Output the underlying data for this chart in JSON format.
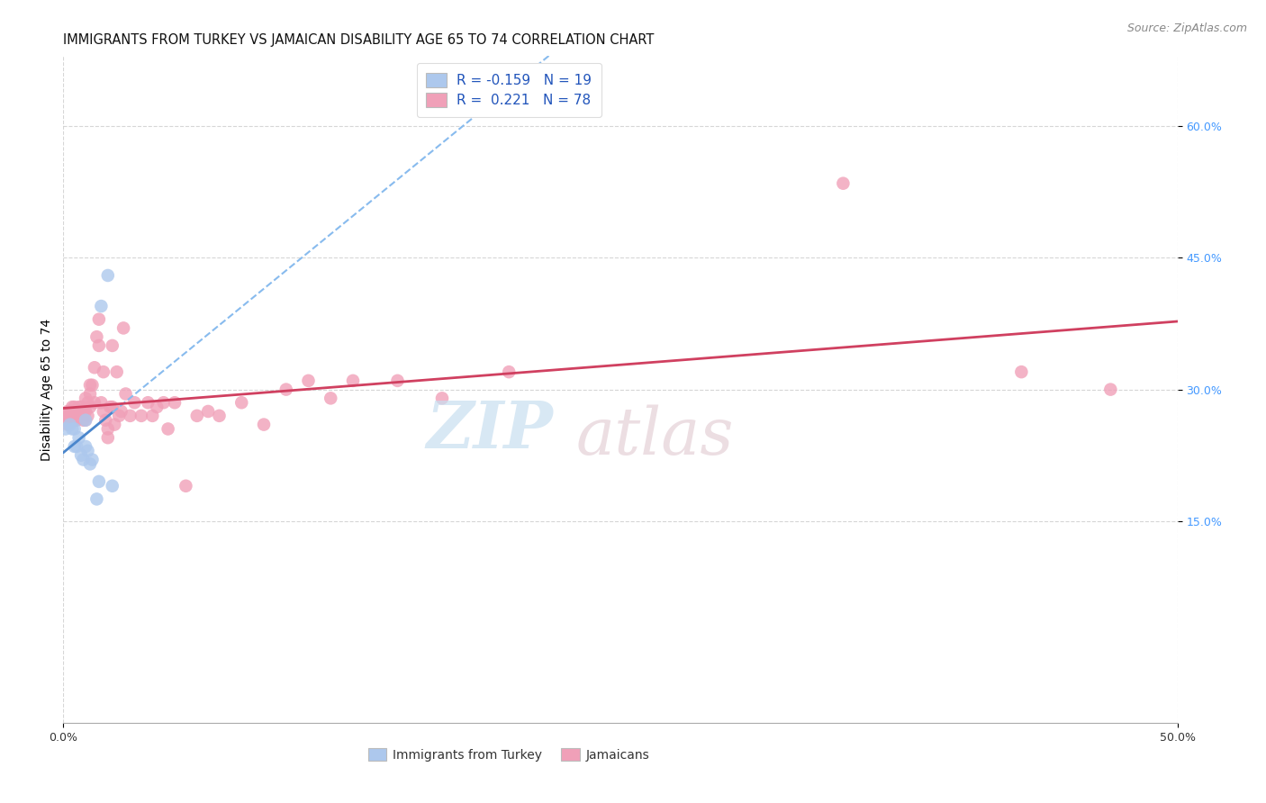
{
  "title": "IMMIGRANTS FROM TURKEY VS JAMAICAN DISABILITY AGE 65 TO 74 CORRELATION CHART",
  "source": "Source: ZipAtlas.com",
  "ylabel": "Disability Age 65 to 74",
  "legend_r_blue": "-0.159",
  "legend_n_blue": "19",
  "legend_r_pink": "0.221",
  "legend_n_pink": "78",
  "blue_color": "#adc8ed",
  "pink_color": "#f0a0b8",
  "trendline_blue_solid_color": "#4a86cc",
  "trendline_blue_dash_color": "#88bbee",
  "trendline_pink_color": "#d04060",
  "xlim": [
    0.0,
    0.5
  ],
  "ylim": [
    -0.08,
    0.68
  ],
  "blue_scatter_x": [
    0.001,
    0.003,
    0.004,
    0.005,
    0.005,
    0.006,
    0.007,
    0.008,
    0.009,
    0.01,
    0.01,
    0.011,
    0.012,
    0.013,
    0.015,
    0.016,
    0.017,
    0.02,
    0.022
  ],
  "blue_scatter_y": [
    0.255,
    0.26,
    0.255,
    0.255,
    0.235,
    0.235,
    0.245,
    0.225,
    0.22,
    0.265,
    0.235,
    0.23,
    0.215,
    0.22,
    0.175,
    0.195,
    0.395,
    0.43,
    0.19
  ],
  "pink_scatter_x": [
    0.001,
    0.001,
    0.002,
    0.002,
    0.003,
    0.003,
    0.003,
    0.004,
    0.004,
    0.004,
    0.005,
    0.005,
    0.005,
    0.006,
    0.006,
    0.006,
    0.007,
    0.007,
    0.007,
    0.008,
    0.008,
    0.008,
    0.009,
    0.009,
    0.01,
    0.01,
    0.01,
    0.011,
    0.011,
    0.012,
    0.012,
    0.012,
    0.013,
    0.014,
    0.014,
    0.015,
    0.016,
    0.016,
    0.017,
    0.018,
    0.018,
    0.019,
    0.02,
    0.02,
    0.021,
    0.022,
    0.022,
    0.023,
    0.024,
    0.025,
    0.026,
    0.027,
    0.028,
    0.03,
    0.032,
    0.035,
    0.038,
    0.04,
    0.042,
    0.045,
    0.047,
    0.05,
    0.055,
    0.06,
    0.065,
    0.07,
    0.08,
    0.09,
    0.1,
    0.11,
    0.12,
    0.13,
    0.15,
    0.17,
    0.2,
    0.35,
    0.43,
    0.47
  ],
  "pink_scatter_y": [
    0.265,
    0.27,
    0.275,
    0.26,
    0.265,
    0.27,
    0.275,
    0.265,
    0.27,
    0.28,
    0.265,
    0.275,
    0.28,
    0.265,
    0.27,
    0.275,
    0.27,
    0.275,
    0.28,
    0.275,
    0.27,
    0.28,
    0.275,
    0.265,
    0.265,
    0.275,
    0.29,
    0.285,
    0.27,
    0.28,
    0.295,
    0.305,
    0.305,
    0.325,
    0.285,
    0.36,
    0.38,
    0.35,
    0.285,
    0.275,
    0.32,
    0.265,
    0.245,
    0.255,
    0.28,
    0.28,
    0.35,
    0.26,
    0.32,
    0.27,
    0.275,
    0.37,
    0.295,
    0.27,
    0.285,
    0.27,
    0.285,
    0.27,
    0.28,
    0.285,
    0.255,
    0.285,
    0.19,
    0.27,
    0.275,
    0.27,
    0.285,
    0.26,
    0.3,
    0.31,
    0.29,
    0.31,
    0.31,
    0.29,
    0.32,
    0.535,
    0.32,
    0.3
  ],
  "background_color": "#ffffff",
  "grid_color": "#cccccc",
  "title_fontsize": 10.5,
  "label_fontsize": 10,
  "tick_fontsize": 9,
  "right_ytick_color": "#4499ff",
  "source_fontsize": 9,
  "watermark_zip_color": "#c8dff0",
  "watermark_atlas_color": "#e0c8d0"
}
